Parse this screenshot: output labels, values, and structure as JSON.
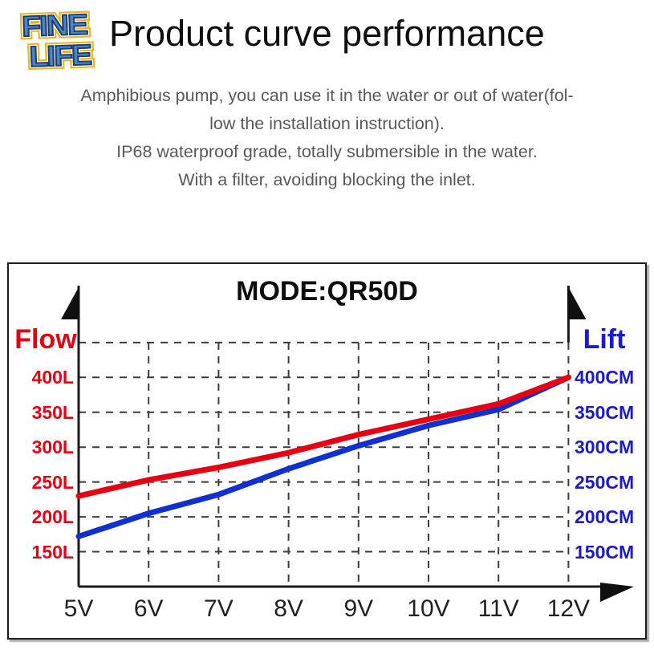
{
  "logo": {
    "line1": "FINE",
    "line2": "LIFE",
    "colors": {
      "fill_top": "#9cc8ea",
      "fill_bottom": "#2b5c9e",
      "outline": "#1c3e6e",
      "glow": "#f0b41e"
    }
  },
  "header": {
    "title": "Product curve performance",
    "description_lines": [
      "Amphibious pump, you can use it in the water or out of water(fol-",
      "low the installation instruction).",
      "IP68 waterproof grade, totally submersible in the water.",
      "With a filter, avoiding blocking the inlet."
    ],
    "text_color": "#58595b"
  },
  "chart_data": {
    "type": "line",
    "title": "MODE:QR50D",
    "categories": [
      "5V",
      "6V",
      "7V",
      "8V",
      "9V",
      "10V",
      "11V",
      "12V"
    ],
    "xlabel_unit": "V",
    "ylim": [
      100,
      450
    ],
    "y_gridlines": [
      150,
      200,
      250,
      300,
      350,
      400,
      450
    ],
    "grid": true,
    "legend": "none",
    "left_axis": {
      "label": "Flow",
      "unit": "L",
      "tick_labels": [
        "400L",
        "350L",
        "300L",
        "250L",
        "200L",
        "150L"
      ],
      "tick_values": [
        400,
        350,
        300,
        250,
        200,
        150
      ],
      "color": "#e60012"
    },
    "right_axis": {
      "label": "Lift",
      "unit": "CM",
      "tick_labels": [
        "400CM",
        "350CM",
        "300CM",
        "250CM",
        "200CM",
        "150CM"
      ],
      "tick_values": [
        400,
        350,
        300,
        250,
        200,
        150
      ],
      "color": "#1b1bcd"
    },
    "series": [
      {
        "name": "Flow",
        "axis": "left",
        "color": "#e60012",
        "values": [
          230,
          253,
          271,
          292,
          318,
          340,
          362,
          400
        ]
      },
      {
        "name": "Lift",
        "axis": "right",
        "color": "#1130d2",
        "values": [
          172,
          205,
          232,
          269,
          302,
          331,
          354,
          400
        ]
      }
    ],
    "style": {
      "grid_color": "#3c3c3c",
      "axis_color": "#1a1a1a",
      "line_width": 7
    }
  }
}
